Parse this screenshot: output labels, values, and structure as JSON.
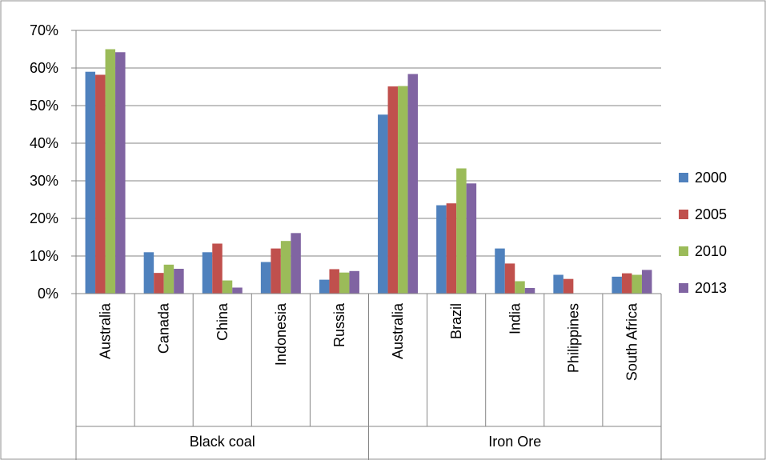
{
  "chart_data": {
    "type": "bar",
    "title": "",
    "xlabel": "",
    "ylabel": "",
    "ylim": [
      0,
      0.7
    ],
    "yticks": [
      0,
      0.1,
      0.2,
      0.3,
      0.4,
      0.5,
      0.6,
      0.7
    ],
    "ytick_labels": [
      "0%",
      "10%",
      "20%",
      "30%",
      "40%",
      "50%",
      "60%",
      "70%"
    ],
    "grid": true,
    "legend_position": "right",
    "groups": [
      {
        "label": "Black coal",
        "categories": [
          "Australia",
          "Canada",
          "China",
          "Indonesia",
          "Russia"
        ]
      },
      {
        "label": "Iron Ore",
        "categories": [
          "Australia",
          "Brazil",
          "India",
          "Philippines",
          "South Africa"
        ]
      }
    ],
    "categories": [
      "Australia",
      "Canada",
      "China",
      "Indonesia",
      "Russia",
      "Australia",
      "Brazil",
      "India",
      "Philippines",
      "South Africa"
    ],
    "series": [
      {
        "name": "2000",
        "color": "#4f81bd",
        "values": [
          0.59,
          0.11,
          0.11,
          0.084,
          0.037,
          0.476,
          0.235,
          0.12,
          0.05,
          0.045
        ]
      },
      {
        "name": "2005",
        "color": "#c0504d",
        "values": [
          0.582,
          0.055,
          0.133,
          0.12,
          0.065,
          0.551,
          0.24,
          0.08,
          0.039,
          0.054
        ]
      },
      {
        "name": "2010",
        "color": "#9bbb59",
        "values": [
          0.65,
          0.077,
          0.035,
          0.14,
          0.056,
          0.552,
          0.333,
          0.033,
          0.0,
          0.05
        ]
      },
      {
        "name": "2013",
        "color": "#8064a2",
        "values": [
          0.642,
          0.066,
          0.016,
          0.161,
          0.06,
          0.584,
          0.293,
          0.015,
          0.0,
          0.063
        ]
      }
    ]
  }
}
